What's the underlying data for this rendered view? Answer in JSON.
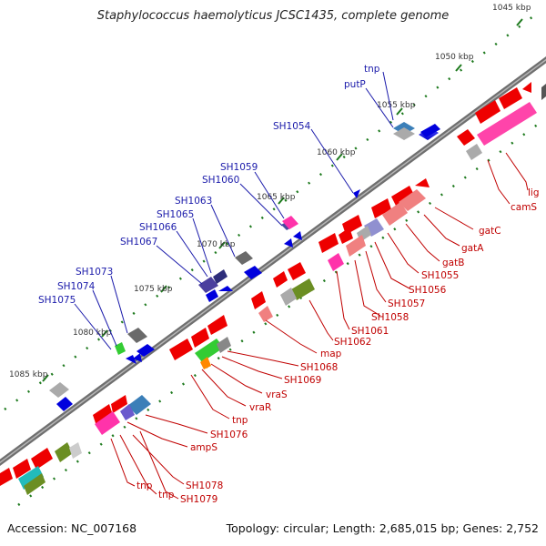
{
  "title": "Staphylococcus haemolyticus JCSC1435, complete genome",
  "accession": "Accession: NC_007168",
  "summary": "Topology: circular; Length: 2,685,015 bp; Genes: 2,752",
  "scale_labels": [
    "1045 kbp",
    "1050 kbp",
    "1055 kbp",
    "1060 kbp",
    "1065 kbp",
    "1070 kbp",
    "1075 kbp",
    "1080 kbp",
    "1085 kbp"
  ],
  "gene_labels_outer": [
    "tnp",
    "putP",
    "SH1054",
    "SH1059",
    "SH1060",
    "SH1063",
    "SH1065",
    "SH1066",
    "SH1067",
    "SH1073",
    "SH1074",
    "SH1075"
  ],
  "gene_labels_inner": [
    "lig",
    "camS",
    "gatC",
    "gatA",
    "gatB",
    "SH1055",
    "SH1056",
    "SH1057",
    "SH1058",
    "SH1061",
    "SH1062",
    "map",
    "SH1068",
    "SH1069",
    "vraS",
    "vraR",
    "tnp",
    "SH1076",
    "ampS",
    "SH1078",
    "tnp",
    "tnp",
    "SH1079"
  ],
  "colors": {
    "backbone": "#8c8c8c",
    "tick": "#1e7a1e",
    "forward_gene": "#0000ee",
    "reverse_gene": "#ee0000",
    "label_outer": "#1a1aaa",
    "label_inner": "#c00000"
  }
}
